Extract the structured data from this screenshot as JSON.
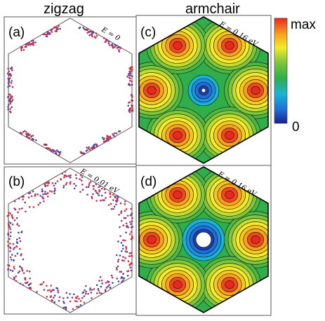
{
  "figure": {
    "column_titles": [
      "zigzag",
      "armchair"
    ],
    "panels": [
      {
        "id": "a",
        "label": "(a)",
        "energy": "E = 0",
        "type": "zigzag-scatter-sparse"
      },
      {
        "id": "b",
        "label": "(b)",
        "energy": "E = 0.01 eV",
        "type": "zigzag-scatter-dense"
      },
      {
        "id": "c",
        "label": "(c)",
        "energy": "E = 0.16 eV",
        "type": "armchair-contour"
      },
      {
        "id": "d",
        "label": "(d)",
        "energy": "E = 0.16 eV",
        "type": "armchair-contour-ring"
      }
    ],
    "colorbar": {
      "max_label": "max",
      "min_label": "0",
      "colors": [
        "#1a1f8c",
        "#1e6fd9",
        "#19b3d6",
        "#2fae4a",
        "#7fc63a",
        "#f4ec2a",
        "#f7a21d",
        "#e8281e"
      ]
    }
  }
}
